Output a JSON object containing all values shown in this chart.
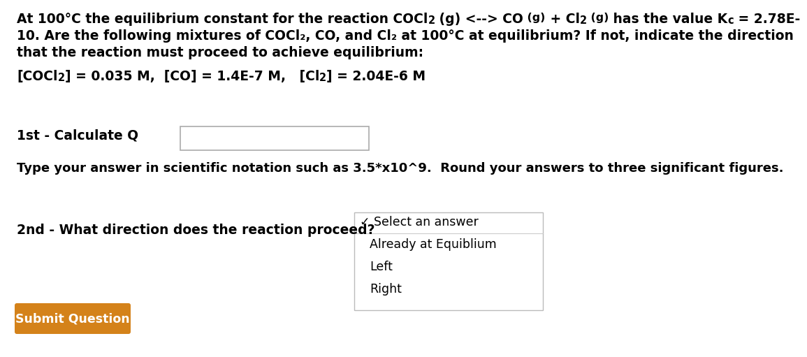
{
  "bg_color": "#ffffff",
  "text_color": "#000000",
  "button_color": "#d4821a",
  "button_text_color": "#ffffff",
  "font_size_main": 13.5,
  "font_size_instruction": 13.0,
  "font_size_button": 12.5,
  "font_size_dropdown": 12.5,
  "degree": "°",
  "sub2": "₂",
  "checkmark": "✓",
  "line2": "10. Are the following mixtures of COCl₂, CO, and Cl₂ at 100°C at equilibrium? If not, indicate the direction",
  "line3": "that the reaction must proceed to achieve equilibrium:",
  "step1_label": "1st - Calculate Q",
  "instruction": "Type your answer in scientific notation such as 3.5*x10^9.  Round your answers to three significant figures.",
  "step2_label": "2nd - What direction does the reaction proceed?",
  "dropdown_option1": " Select an answer",
  "dropdown_option2": "Already at Equiblium",
  "dropdown_option3": "Left",
  "dropdown_option4": "Right",
  "button_text": "Submit Question"
}
